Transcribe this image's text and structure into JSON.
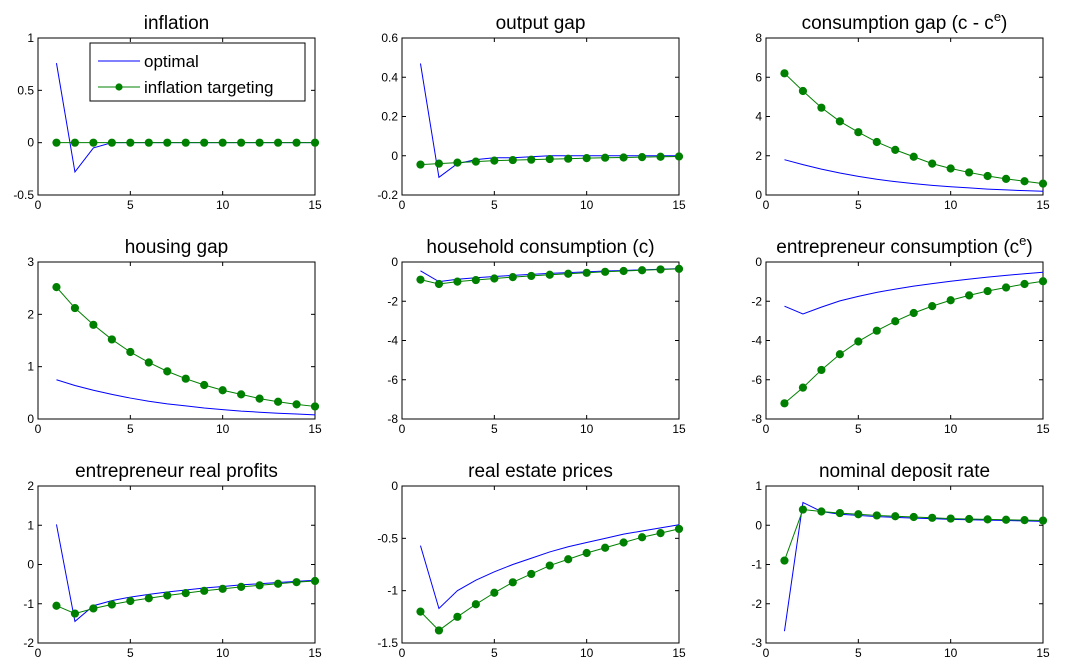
{
  "legend": {
    "placement": "top-right",
    "entries": [
      {
        "label": "optimal",
        "color": "#0000ff",
        "marker": "none"
      },
      {
        "label": "inflation targeting",
        "color": "#008000",
        "marker": "circle"
      }
    ]
  },
  "chart_data": [
    {
      "type": "line",
      "title": "inflation",
      "x": [
        1,
        2,
        3,
        4,
        5,
        6,
        7,
        8,
        9,
        10,
        11,
        12,
        13,
        14,
        15
      ],
      "xlim": [
        0,
        15
      ],
      "xticks": [
        0,
        5,
        10,
        15
      ],
      "ylim": [
        -0.5,
        1
      ],
      "yticks": [
        -0.5,
        0,
        0.5,
        1
      ],
      "yticklabels": [
        "-0.5",
        "0",
        "0.5",
        "1"
      ],
      "grid": false,
      "legend": true,
      "series": [
        {
          "name": "optimal",
          "values": [
            0.76,
            -0.28,
            -0.05,
            0,
            0,
            0,
            0,
            0,
            0,
            0,
            0,
            0,
            0,
            0,
            0
          ]
        },
        {
          "name": "inflation targeting",
          "values": [
            0,
            0,
            0,
            0,
            0,
            0,
            0,
            0,
            0,
            0,
            0,
            0,
            0,
            0,
            0
          ]
        }
      ]
    },
    {
      "type": "line",
      "title": "output gap",
      "x": [
        1,
        2,
        3,
        4,
        5,
        6,
        7,
        8,
        9,
        10,
        11,
        12,
        13,
        14,
        15
      ],
      "xlim": [
        0,
        15
      ],
      "xticks": [
        0,
        5,
        10,
        15
      ],
      "ylim": [
        -0.2,
        0.6
      ],
      "yticks": [
        -0.2,
        0,
        0.2,
        0.4,
        0.6
      ],
      "yticklabels": [
        "-0.2",
        "0",
        "0.2",
        "0.4",
        "0.6"
      ],
      "grid": false,
      "legend": false,
      "series": [
        {
          "name": "optimal",
          "values": [
            0.47,
            -0.11,
            -0.04,
            -0.02,
            -0.01,
            -0.01,
            -0.005,
            0,
            0,
            0,
            0,
            0,
            0,
            0,
            0
          ]
        },
        {
          "name": "inflation targeting",
          "values": [
            -0.045,
            -0.04,
            -0.035,
            -0.03,
            -0.025,
            -0.022,
            -0.02,
            -0.017,
            -0.015,
            -0.012,
            -0.01,
            -0.009,
            -0.007,
            -0.005,
            -0.004
          ]
        }
      ]
    },
    {
      "type": "line",
      "title": "consumption gap (c - c",
      "title_sup": "e",
      "title_end": ")",
      "x": [
        1,
        2,
        3,
        4,
        5,
        6,
        7,
        8,
        9,
        10,
        11,
        12,
        13,
        14,
        15
      ],
      "xlim": [
        0,
        15
      ],
      "xticks": [
        0,
        5,
        10,
        15
      ],
      "ylim": [
        0,
        8
      ],
      "yticks": [
        0,
        2,
        4,
        6,
        8
      ],
      "yticklabels": [
        "0",
        "2",
        "4",
        "6",
        "8"
      ],
      "grid": false,
      "legend": false,
      "series": [
        {
          "name": "optimal",
          "values": [
            1.8,
            1.55,
            1.32,
            1.12,
            0.95,
            0.8,
            0.68,
            0.58,
            0.49,
            0.42,
            0.36,
            0.3,
            0.26,
            0.22,
            0.19
          ]
        },
        {
          "name": "inflation targeting",
          "values": [
            6.2,
            5.3,
            4.45,
            3.75,
            3.2,
            2.7,
            2.3,
            1.95,
            1.6,
            1.35,
            1.15,
            0.97,
            0.82,
            0.7,
            0.58
          ]
        }
      ]
    },
    {
      "type": "line",
      "title": "housing gap",
      "x": [
        1,
        2,
        3,
        4,
        5,
        6,
        7,
        8,
        9,
        10,
        11,
        12,
        13,
        14,
        15
      ],
      "xlim": [
        0,
        15
      ],
      "xticks": [
        0,
        5,
        10,
        15
      ],
      "ylim": [
        0,
        3
      ],
      "yticks": [
        0,
        1,
        2,
        3
      ],
      "yticklabels": [
        "0",
        "1",
        "2",
        "3"
      ],
      "grid": false,
      "legend": false,
      "series": [
        {
          "name": "optimal",
          "values": [
            0.75,
            0.64,
            0.55,
            0.47,
            0.4,
            0.34,
            0.29,
            0.25,
            0.21,
            0.18,
            0.15,
            0.13,
            0.11,
            0.095,
            0.08
          ]
        },
        {
          "name": "inflation targeting",
          "values": [
            2.52,
            2.12,
            1.8,
            1.52,
            1.28,
            1.08,
            0.91,
            0.77,
            0.65,
            0.55,
            0.47,
            0.39,
            0.33,
            0.28,
            0.24
          ]
        }
      ]
    },
    {
      "type": "line",
      "title": "household consumption (c)",
      "x": [
        1,
        2,
        3,
        4,
        5,
        6,
        7,
        8,
        9,
        10,
        11,
        12,
        13,
        14,
        15
      ],
      "xlim": [
        0,
        15
      ],
      "xticks": [
        0,
        5,
        10,
        15
      ],
      "ylim": [
        -8,
        0
      ],
      "yticks": [
        -8,
        -6,
        -4,
        -2,
        0
      ],
      "yticklabels": [
        "-8",
        "-6",
        "-4",
        "-2",
        "0"
      ],
      "grid": false,
      "legend": false,
      "series": [
        {
          "name": "optimal",
          "values": [
            -0.45,
            -1.0,
            -0.88,
            -0.8,
            -0.74,
            -0.68,
            -0.63,
            -0.58,
            -0.54,
            -0.5,
            -0.46,
            -0.43,
            -0.4,
            -0.37,
            -0.34
          ]
        },
        {
          "name": "inflation targeting",
          "values": [
            -0.9,
            -1.12,
            -1.0,
            -0.92,
            -0.84,
            -0.77,
            -0.71,
            -0.65,
            -0.6,
            -0.55,
            -0.5,
            -0.46,
            -0.42,
            -0.38,
            -0.35
          ]
        }
      ]
    },
    {
      "type": "line",
      "title": "entrepreneur consumption (c",
      "title_sup": "e",
      "title_end": ")",
      "x": [
        1,
        2,
        3,
        4,
        5,
        6,
        7,
        8,
        9,
        10,
        11,
        12,
        13,
        14,
        15
      ],
      "xlim": [
        0,
        15
      ],
      "xticks": [
        0,
        5,
        10,
        15
      ],
      "ylim": [
        -8,
        0
      ],
      "yticks": [
        -8,
        -6,
        -4,
        -2,
        0
      ],
      "yticklabels": [
        "-8",
        "-6",
        "-4",
        "-2",
        "0"
      ],
      "grid": false,
      "legend": false,
      "series": [
        {
          "name": "optimal",
          "values": [
            -2.25,
            -2.65,
            -2.3,
            -1.98,
            -1.75,
            -1.55,
            -1.38,
            -1.23,
            -1.1,
            -0.98,
            -0.87,
            -0.77,
            -0.68,
            -0.6,
            -0.52
          ]
        },
        {
          "name": "inflation targeting",
          "values": [
            -7.2,
            -6.4,
            -5.5,
            -4.7,
            -4.05,
            -3.5,
            -3.02,
            -2.6,
            -2.25,
            -1.95,
            -1.7,
            -1.48,
            -1.3,
            -1.12,
            -0.98
          ]
        }
      ]
    },
    {
      "type": "line",
      "title": "entrepreneur real profits",
      "x": [
        1,
        2,
        3,
        4,
        5,
        6,
        7,
        8,
        9,
        10,
        11,
        12,
        13,
        14,
        15
      ],
      "xlim": [
        0,
        15
      ],
      "xticks": [
        0,
        5,
        10,
        15
      ],
      "ylim": [
        -2,
        2
      ],
      "yticks": [
        -2,
        -1,
        0,
        1,
        2
      ],
      "yticklabels": [
        "-2",
        "-1",
        "0",
        "1",
        "2"
      ],
      "grid": false,
      "legend": false,
      "series": [
        {
          "name": "optimal",
          "values": [
            1.02,
            -1.45,
            -1.05,
            -0.92,
            -0.83,
            -0.76,
            -0.7,
            -0.65,
            -0.6,
            -0.56,
            -0.52,
            -0.49,
            -0.46,
            -0.43,
            -0.4
          ]
        },
        {
          "name": "inflation targeting",
          "values": [
            -1.05,
            -1.25,
            -1.12,
            -1.02,
            -0.93,
            -0.86,
            -0.79,
            -0.73,
            -0.67,
            -0.62,
            -0.57,
            -0.53,
            -0.49,
            -0.45,
            -0.42
          ]
        }
      ]
    },
    {
      "type": "line",
      "title": "real estate prices",
      "x": [
        1,
        2,
        3,
        4,
        5,
        6,
        7,
        8,
        9,
        10,
        11,
        12,
        13,
        14,
        15
      ],
      "xlim": [
        0,
        15
      ],
      "xticks": [
        0,
        5,
        10,
        15
      ],
      "ylim": [
        -1.5,
        0
      ],
      "yticks": [
        -1.5,
        -1,
        -0.5,
        0
      ],
      "yticklabels": [
        "-1.5",
        "-1",
        "-0.5",
        "0"
      ],
      "grid": false,
      "legend": false,
      "series": [
        {
          "name": "optimal",
          "values": [
            -0.57,
            -1.17,
            -1.0,
            -0.9,
            -0.82,
            -0.75,
            -0.69,
            -0.63,
            -0.58,
            -0.54,
            -0.5,
            -0.46,
            -0.43,
            -0.4,
            -0.37
          ]
        },
        {
          "name": "inflation targeting",
          "values": [
            -1.2,
            -1.38,
            -1.25,
            -1.13,
            -1.02,
            -0.92,
            -0.84,
            -0.76,
            -0.7,
            -0.64,
            -0.59,
            -0.54,
            -0.49,
            -0.45,
            -0.41
          ]
        }
      ]
    },
    {
      "type": "line",
      "title": "nominal deposit rate",
      "x": [
        1,
        2,
        3,
        4,
        5,
        6,
        7,
        8,
        9,
        10,
        11,
        12,
        13,
        14,
        15
      ],
      "xlim": [
        0,
        15
      ],
      "xticks": [
        0,
        5,
        10,
        15
      ],
      "ylim": [
        -3,
        1
      ],
      "yticks": [
        -3,
        -2,
        -1,
        0,
        1
      ],
      "yticklabels": [
        "-3",
        "-2",
        "-1",
        "0",
        "1"
      ],
      "grid": false,
      "legend": false,
      "series": [
        {
          "name": "optimal",
          "values": [
            -2.7,
            0.58,
            0.35,
            0.28,
            0.25,
            0.22,
            0.2,
            0.18,
            0.17,
            0.15,
            0.14,
            0.13,
            0.12,
            0.11,
            0.1
          ]
        },
        {
          "name": "inflation targeting",
          "values": [
            -0.9,
            0.4,
            0.35,
            0.31,
            0.28,
            0.25,
            0.23,
            0.21,
            0.19,
            0.17,
            0.16,
            0.15,
            0.14,
            0.13,
            0.12
          ]
        }
      ]
    }
  ]
}
